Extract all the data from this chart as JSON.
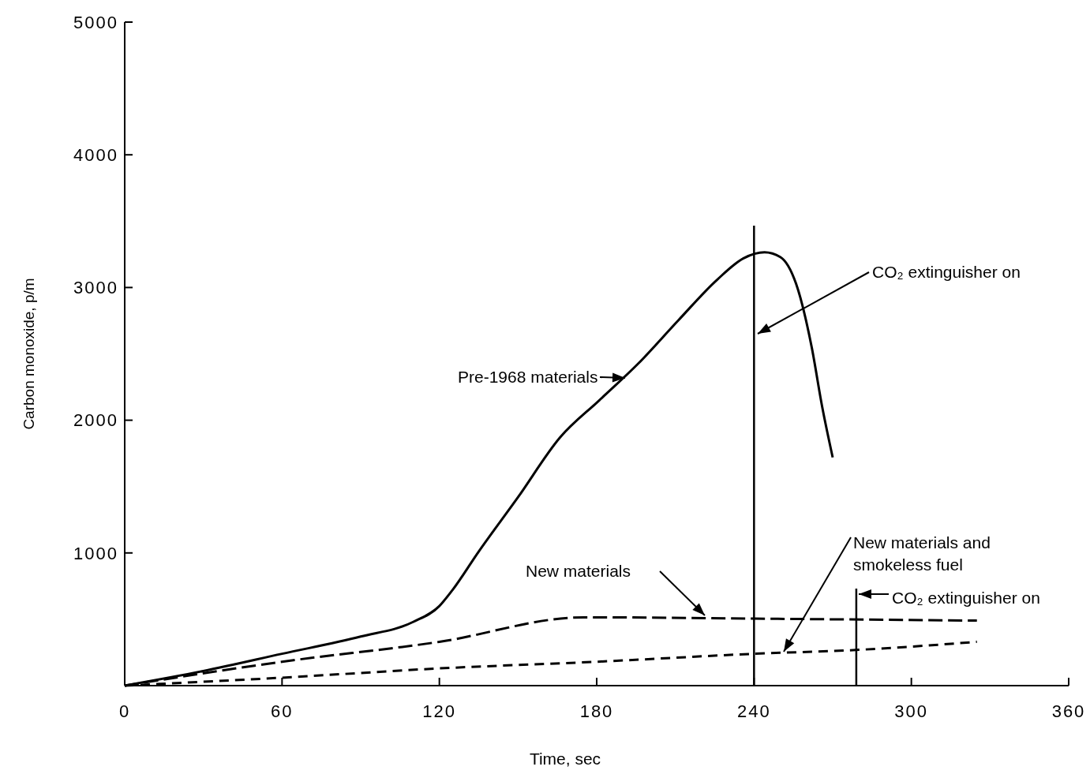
{
  "chart_data": {
    "type": "line",
    "xlabel": "Time, sec",
    "ylabel": "Carbon monoxide, p/m",
    "xlim": [
      0,
      360
    ],
    "xticks": [
      0,
      60,
      120,
      180,
      240,
      300,
      360
    ],
    "ylim": [
      0,
      5000
    ],
    "yticks": [
      {
        "value": 0,
        "label": null
      },
      1000,
      2000,
      3000,
      4000,
      5000
    ],
    "grid": false,
    "series": [
      {
        "name": "Pre-1968 materials",
        "color": "#000000",
        "line_style": "solid",
        "x": [
          0,
          30,
          60,
          90,
          110,
          120,
          125,
          135,
          150,
          166,
          181,
          196,
          211,
          226,
          236,
          244,
          250,
          256,
          262,
          266,
          270
        ],
        "values": [
          0,
          110,
          240,
          370,
          480,
          600,
          720,
          1010,
          1420,
          1870,
          2150,
          2430,
          2750,
          3060,
          3220,
          3265,
          3230,
          3030,
          2550,
          2100,
          1720
        ]
      },
      {
        "name": "New materials",
        "color": "#000000",
        "line_style": "dashed",
        "x": [
          0,
          60,
          120,
          175,
          240,
          325
        ],
        "values": [
          0,
          180,
          330,
          515,
          505,
          490
        ]
      },
      {
        "name": "New materials and smokeless fuel",
        "color": "#000000",
        "line_style": "dotted",
        "x": [
          0,
          60,
          120,
          180,
          240,
          280,
          325
        ],
        "values": [
          0,
          60,
          130,
          180,
          240,
          270,
          330
        ]
      }
    ],
    "ref_lines": [
      {
        "axis": "x",
        "value": 240,
        "label": "CO₂ extinguisher on",
        "color": "#000000"
      },
      {
        "axis": "x",
        "value": 279,
        "label": "CO₂ extinguisher on",
        "color": "#000000"
      }
    ]
  }
}
